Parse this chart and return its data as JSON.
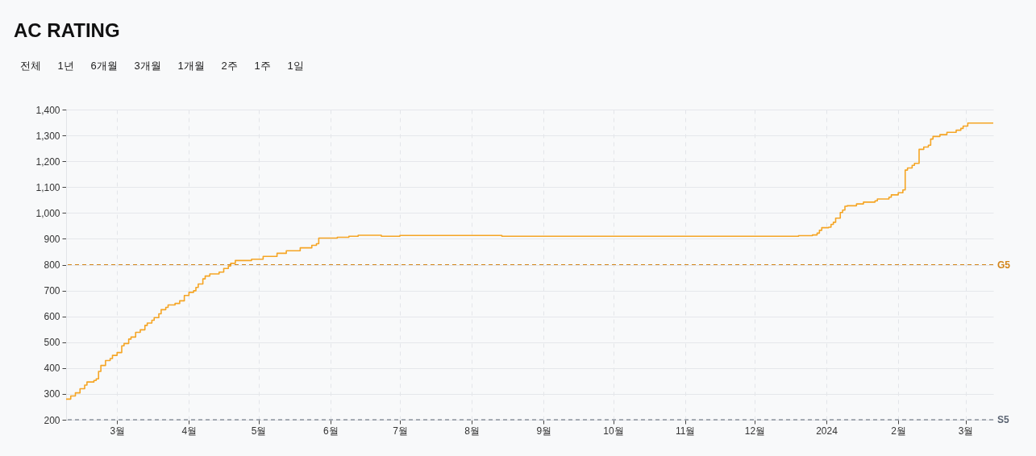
{
  "chart_data": {
    "type": "step",
    "title": "AC RATING",
    "annotations": [
      "전체",
      "1년",
      "6개월",
      "3개월",
      "1개월",
      "2주",
      "1주",
      "1일"
    ],
    "x": [
      "2023-02-07",
      "2023-02-09",
      "2023-02-11",
      "2023-02-13",
      "2023-02-15",
      "2023-02-16",
      "2023-02-19",
      "2023-02-20",
      "2023-02-21",
      "2023-02-22",
      "2023-02-24",
      "2023-02-26",
      "2023-02-27",
      "2023-03-01",
      "2023-03-03",
      "2023-03-04",
      "2023-03-06",
      "2023-03-07",
      "2023-03-09",
      "2023-03-11",
      "2023-03-13",
      "2023-03-14",
      "2023-03-16",
      "2023-03-17",
      "2023-03-19",
      "2023-03-20",
      "2023-03-22",
      "2023-03-23",
      "2023-03-26",
      "2023-03-28",
      "2023-03-30",
      "2023-04-01",
      "2023-04-03",
      "2023-04-04",
      "2023-04-05",
      "2023-04-07",
      "2023-04-08",
      "2023-04-10",
      "2023-04-14",
      "2023-04-16",
      "2023-04-18",
      "2023-04-19",
      "2023-04-21",
      "2023-04-28",
      "2023-05-03",
      "2023-05-09",
      "2023-05-13",
      "2023-05-19",
      "2023-05-24",
      "2023-05-26",
      "2023-05-27",
      "2023-06-04",
      "2023-06-09",
      "2023-06-13",
      "2023-06-23",
      "2023-07-01",
      "2023-08-14",
      "2023-12-20",
      "2023-12-26",
      "2023-12-28",
      "2023-12-29",
      "2023-12-30",
      "2024-01-02",
      "2024-01-03",
      "2024-01-04",
      "2024-01-05",
      "2024-01-07",
      "2024-01-08",
      "2024-01-09",
      "2024-01-10",
      "2024-01-14",
      "2024-01-17",
      "2024-01-22",
      "2024-01-23",
      "2024-01-28",
      "2024-01-29",
      "2024-02-01",
      "2024-02-03",
      "2024-02-04",
      "2024-02-05",
      "2024-02-07",
      "2024-02-08",
      "2024-02-10",
      "2024-02-12",
      "2024-02-14",
      "2024-02-15",
      "2024-02-16",
      "2024-02-19",
      "2024-02-22",
      "2024-02-26",
      "2024-02-28",
      "2024-02-29",
      "2024-03-02",
      "2024-03-13"
    ],
    "series": [
      {
        "color": "#f5a524",
        "values": [
          280,
          292,
          304,
          320,
          334,
          346,
          352,
          358,
          387,
          410,
          429,
          437,
          449,
          460,
          486,
          495,
          512,
          520,
          538,
          548,
          565,
          574,
          585,
          595,
          610,
          626,
          635,
          644,
          650,
          660,
          681,
          693,
          699,
          712,
          725,
          745,
          756,
          764,
          771,
          785,
          795,
          805,
          816,
          821,
          832,
          844,
          854,
          865,
          875,
          881,
          903,
          906,
          910,
          914,
          910,
          913,
          910,
          912,
          915,
          922,
          933,
          943,
          945,
          956,
          964,
          980,
          1002,
          1011,
          1026,
          1028,
          1035,
          1042,
          1047,
          1054,
          1061,
          1070,
          1078,
          1089,
          1166,
          1174,
          1184,
          1192,
          1246,
          1255,
          1262,
          1286,
          1296,
          1303,
          1312,
          1320,
          1327,
          1336,
          1348,
          1348
        ]
      }
    ],
    "xlim": [
      "2023-02-07",
      "2024-03-13"
    ],
    "xticks": [
      {
        "value": "2023-03-01",
        "label": "3월"
      },
      {
        "value": "2023-04-01",
        "label": "4월"
      },
      {
        "value": "2023-05-01",
        "label": "5월"
      },
      {
        "value": "2023-06-01",
        "label": "6월"
      },
      {
        "value": "2023-07-01",
        "label": "7월"
      },
      {
        "value": "2023-08-01",
        "label": "8월"
      },
      {
        "value": "2023-09-01",
        "label": "9월"
      },
      {
        "value": "2023-10-01",
        "label": "10월"
      },
      {
        "value": "2023-11-01",
        "label": "11월"
      },
      {
        "value": "2023-12-01",
        "label": "12월"
      },
      {
        "value": "2024-01-01",
        "label": "2024"
      },
      {
        "value": "2024-02-01",
        "label": "2월"
      },
      {
        "value": "2024-03-01",
        "label": "3월"
      }
    ],
    "ylim": [
      200,
      1400
    ],
    "yticks": [
      200,
      300,
      400,
      500,
      600,
      700,
      800,
      900,
      {
        "value": 1000,
        "label": "1,000"
      },
      {
        "value": 1100,
        "label": "1,100"
      },
      {
        "value": 1200,
        "label": "1,200"
      },
      {
        "value": 1300,
        "label": "1,300"
      },
      {
        "value": 1400,
        "label": "1,400"
      }
    ],
    "grid": true,
    "ref_lines": [
      {
        "axis": "y",
        "value": 800,
        "label": "G5",
        "color": "#d3851a",
        "line_style": "dashed"
      },
      {
        "axis": "y",
        "value": 200,
        "label": "S5",
        "color": "#5b6472",
        "line_style": "dashed"
      }
    ]
  }
}
